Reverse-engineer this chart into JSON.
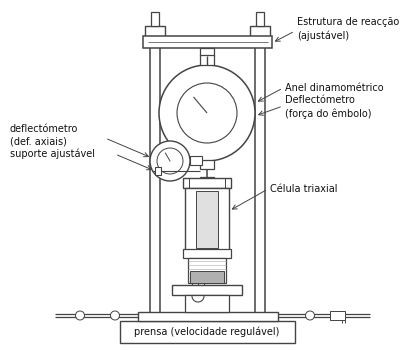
{
  "bg_color": "#ffffff",
  "line_color": "#444444",
  "text_color": "#111111",
  "title": "prensa (velocidade regulável)",
  "labels": {
    "estrutura": "Estrutura de reacção\n(ajustável)",
    "anel": "Anel dinamométrico",
    "deflectometro_embolo": "Deflectómetro\n(força do êmbolo)",
    "deflectometro_axial": "deflectómetro\n(def. axiais)",
    "suporte": "suporte ajustável",
    "celula": "Célula triaxial"
  },
  "fig_width": 4.18,
  "fig_height": 3.51,
  "dpi": 100
}
